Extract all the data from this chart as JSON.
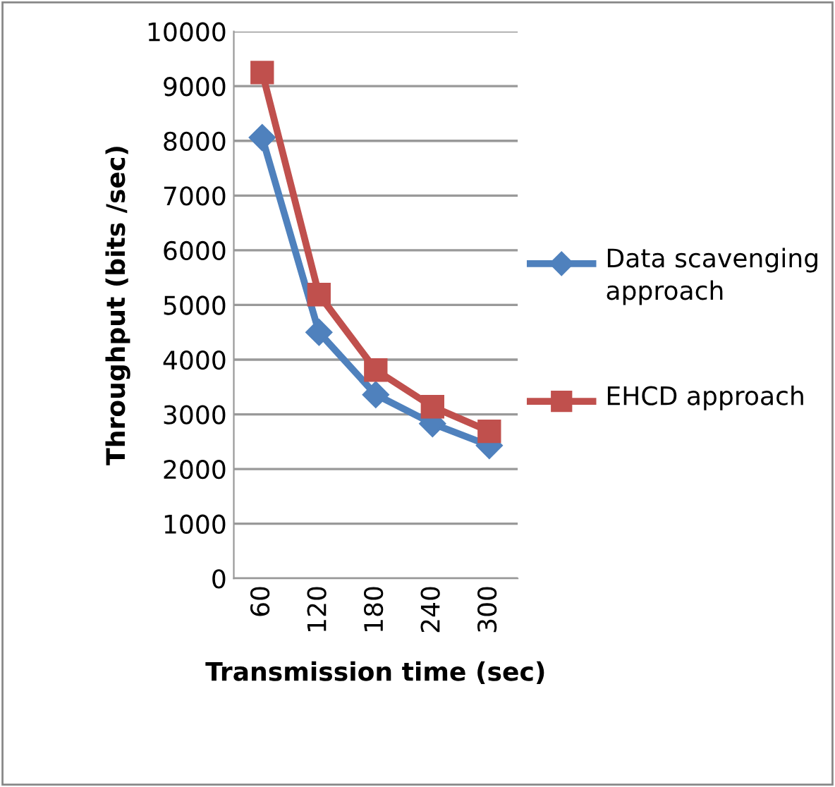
{
  "chart_data": {
    "type": "line",
    "xlabel": "Transmission time (sec)",
    "ylabel": "Throughput (bits /sec)",
    "categories": [
      "60",
      "120",
      "180",
      "240",
      "300"
    ],
    "series": [
      {
        "name": "Data scavenging approach",
        "color": "#4f81bd",
        "marker": "diamond",
        "values": [
          8060,
          4500,
          3360,
          2830,
          2430
        ]
      },
      {
        "name": "EHCD approach",
        "color": "#c0504d",
        "marker": "square",
        "values": [
          9250,
          5190,
          3810,
          3140,
          2690
        ]
      }
    ],
    "ylim": [
      0,
      10000
    ],
    "yticks": [
      0,
      1000,
      2000,
      3000,
      4000,
      5000,
      6000,
      7000,
      8000,
      9000,
      10000
    ],
    "grid": "y",
    "legend": "right",
    "line_style": "solid"
  }
}
